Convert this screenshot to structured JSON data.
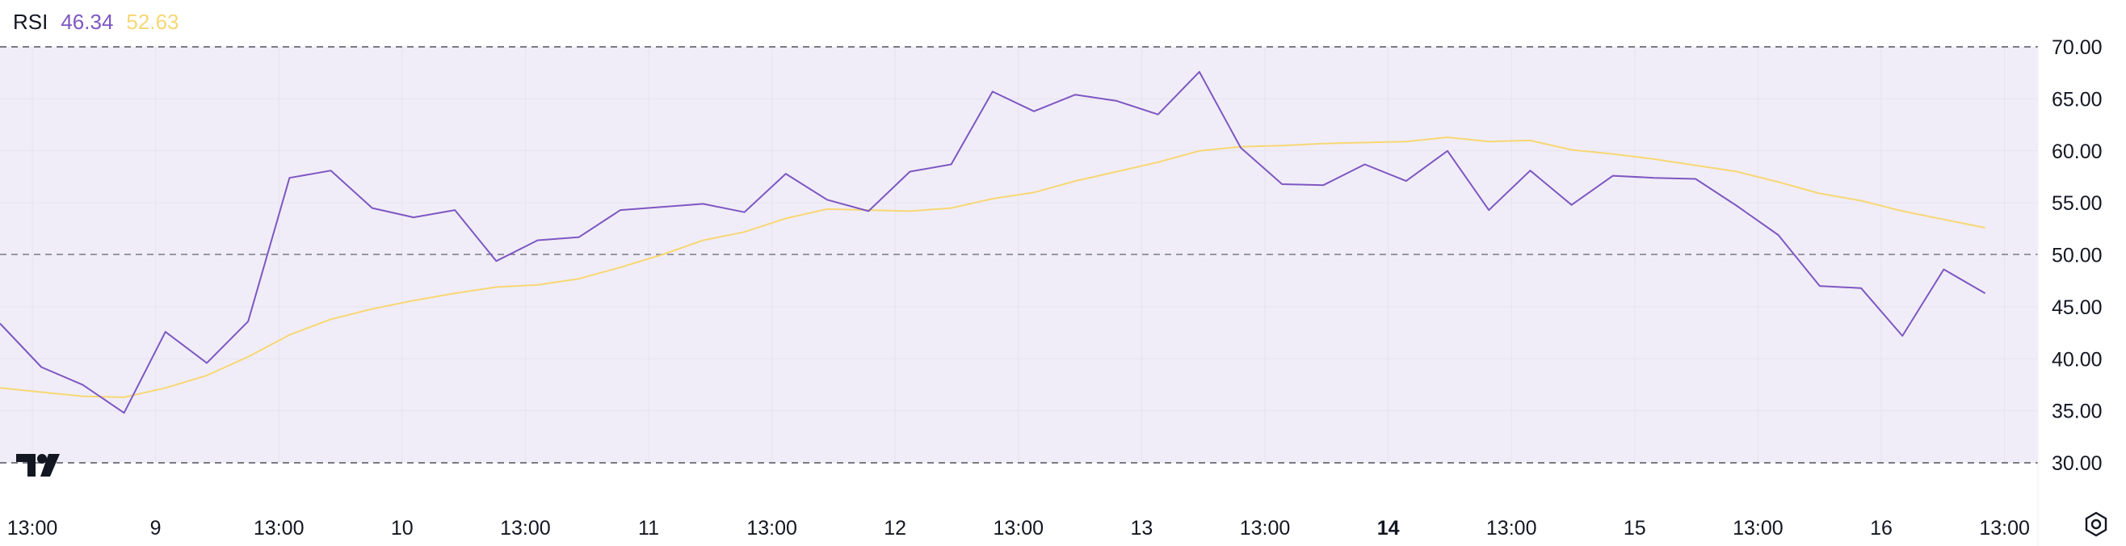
{
  "legend": {
    "name": "RSI",
    "rsi_value": "46.34",
    "ma_value": "52.63"
  },
  "colors": {
    "rsi": "#7e57c2",
    "ma": "#f7d774",
    "band_fill": "#f0edf8",
    "grid": "#e6e3ee",
    "dashed": "#787b86",
    "axis_text": "#131722"
  },
  "icons": {
    "logo": "tradingview-logo",
    "settings": "settings-gear-icon"
  },
  "chart_data": {
    "type": "line",
    "y_tick_labels": [
      "70.00",
      "65.00",
      "60.00",
      "55.00",
      "50.00",
      "45.00",
      "40.00",
      "35.00",
      "30.00"
    ],
    "ylim": [
      28,
      73
    ],
    "bands": {
      "upper": 70,
      "middle": 50,
      "lower": 30
    },
    "x_tick_labels": [
      {
        "label": "13:00",
        "bold": false
      },
      {
        "label": "9",
        "bold": false
      },
      {
        "label": "13:00",
        "bold": false
      },
      {
        "label": "10",
        "bold": false
      },
      {
        "label": "13:00",
        "bold": false
      },
      {
        "label": "11",
        "bold": false
      },
      {
        "label": "13:00",
        "bold": false
      },
      {
        "label": "12",
        "bold": false
      },
      {
        "label": "13:00",
        "bold": false
      },
      {
        "label": "13",
        "bold": false
      },
      {
        "label": "13:00",
        "bold": false
      },
      {
        "label": "14",
        "bold": true
      },
      {
        "label": "13:00",
        "bold": false
      },
      {
        "label": "15",
        "bold": false
      },
      {
        "label": "13:00",
        "bold": false
      },
      {
        "label": "16",
        "bold": false
      },
      {
        "label": "13:00",
        "bold": false
      }
    ],
    "series": [
      {
        "name": "RSI",
        "values": [
          43.4,
          39.2,
          37.5,
          34.8,
          42.6,
          39.6,
          43.6,
          57.4,
          58.1,
          54.5,
          53.6,
          54.3,
          49.4,
          51.4,
          51.7,
          54.3,
          54.6,
          54.9,
          54.1,
          57.8,
          55.3,
          54.2,
          58.0,
          58.7,
          65.7,
          63.8,
          65.4,
          64.8,
          63.5,
          67.6,
          60.3,
          56.8,
          56.7,
          58.7,
          57.1,
          60.0,
          54.3,
          58.1,
          54.8,
          57.6,
          57.4,
          57.3,
          54.7,
          51.9,
          47.0,
          46.8,
          42.2,
          48.6,
          46.3
        ]
      },
      {
        "name": "RSI-based MA",
        "values": [
          37.2,
          36.8,
          36.4,
          36.3,
          37.2,
          38.4,
          40.2,
          42.3,
          43.8,
          44.8,
          45.6,
          46.3,
          46.9,
          47.1,
          47.7,
          48.8,
          50.0,
          51.4,
          52.2,
          53.5,
          54.4,
          54.3,
          54.2,
          54.5,
          55.4,
          56.0,
          57.1,
          58.0,
          58.9,
          60.0,
          60.4,
          60.5,
          60.7,
          60.8,
          60.9,
          61.3,
          60.9,
          61.0,
          60.1,
          59.7,
          59.2,
          58.6,
          58.0,
          57.0,
          55.9,
          55.2,
          54.2,
          53.4,
          52.6
        ]
      }
    ]
  }
}
